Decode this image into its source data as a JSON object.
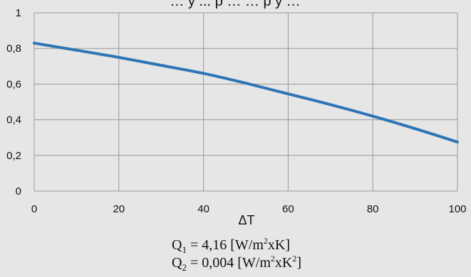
{
  "chart_data": {
    "type": "line",
    "title": "… y ... p … … p y …",
    "xlabel": "ΔT",
    "ylabel": "",
    "xlim": [
      0,
      100
    ],
    "ylim": [
      0,
      1
    ],
    "x_ticks": [
      "0",
      "20",
      "40",
      "60",
      "80",
      "100"
    ],
    "y_ticks": [
      "0",
      "0,2",
      "0,4",
      "0,6",
      "0,8",
      "1"
    ],
    "grid": true,
    "colors": {
      "line": "#2e75b6",
      "grid": "#999999",
      "background": "#e6e6e6"
    },
    "series": [
      {
        "x": [
          0,
          10,
          20,
          30,
          40,
          50,
          60,
          70,
          80,
          90,
          100
        ],
        "values": [
          0.83,
          0.79,
          0.75,
          0.705,
          0.66,
          0.605,
          0.545,
          0.485,
          0.42,
          0.35,
          0.275
        ]
      }
    ]
  },
  "formulas": {
    "q1_base": "Q",
    "q1_sub": "1",
    "q1_mid": " = 4,16 [W/m",
    "q1_sup": "2",
    "q1_end": "xK]",
    "q2_base": "Q",
    "q2_sub": "2",
    "q2_mid": " = 0,004 [W/m",
    "q2_sup": "2",
    "q2_mid2": "xK",
    "q2_sup2": "2",
    "q2_end": "]"
  }
}
